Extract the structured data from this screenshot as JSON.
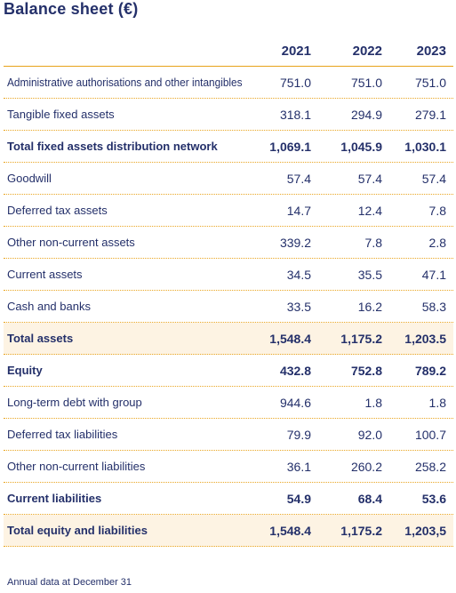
{
  "title": "Balance sheet (€)",
  "columns": [
    "2021",
    "2022",
    "2023"
  ],
  "rows": [
    {
      "label": "Administrative authorisations and other intangibles",
      "values": [
        "751.0",
        "751.0",
        "751.0"
      ],
      "bold": false,
      "highlight": false
    },
    {
      "label": "Tangible fixed assets",
      "values": [
        "318.1",
        "294.9",
        "279.1"
      ],
      "bold": false,
      "highlight": false
    },
    {
      "label": "Total fixed assets distribution network",
      "values": [
        "1,069.1",
        "1,045.9",
        "1,030.1"
      ],
      "bold": true,
      "highlight": false
    },
    {
      "label": "Goodwill",
      "values": [
        "57.4",
        "57.4",
        "57.4"
      ],
      "bold": false,
      "highlight": false
    },
    {
      "label": "Deferred tax assets",
      "values": [
        "14.7",
        "12.4",
        "7.8"
      ],
      "bold": false,
      "highlight": false
    },
    {
      "label": "Other non-current assets",
      "values": [
        "339.2",
        "7.8",
        "2.8"
      ],
      "bold": false,
      "highlight": false
    },
    {
      "label": "Current assets",
      "values": [
        "34.5",
        "35.5",
        "47.1"
      ],
      "bold": false,
      "highlight": false
    },
    {
      "label": "Cash and banks",
      "values": [
        "33.5",
        "16.2",
        "58.3"
      ],
      "bold": false,
      "highlight": false
    },
    {
      "label": "Total assets",
      "values": [
        "1,548.4",
        "1,175.2",
        "1,203.5"
      ],
      "bold": true,
      "highlight": true
    },
    {
      "label": "Equity",
      "values": [
        "432.8",
        "752.8",
        "789.2"
      ],
      "bold": true,
      "highlight": false
    },
    {
      "label": "Long-term debt with group",
      "values": [
        "944.6",
        "1.8",
        "1.8"
      ],
      "bold": false,
      "highlight": false
    },
    {
      "label": "Deferred tax liabilities",
      "values": [
        "79.9",
        "92.0",
        "100.7"
      ],
      "bold": false,
      "highlight": false
    },
    {
      "label": "Other non-current liabilities",
      "values": [
        "36.1",
        "260.2",
        "258.2"
      ],
      "bold": false,
      "highlight": false
    },
    {
      "label": "Current liabilities",
      "values": [
        "54.9",
        "68.4",
        "53.6"
      ],
      "bold": true,
      "highlight": false
    },
    {
      "label": "Total equity and liabilities",
      "values": [
        "1,548.4",
        "1,175.2",
        "1,203,5"
      ],
      "bold": true,
      "highlight": true
    }
  ],
  "footer": "Annual data at December 31",
  "colors": {
    "text": "#24306a",
    "accent": "#e9a623",
    "highlight": "#fdf3e3"
  }
}
